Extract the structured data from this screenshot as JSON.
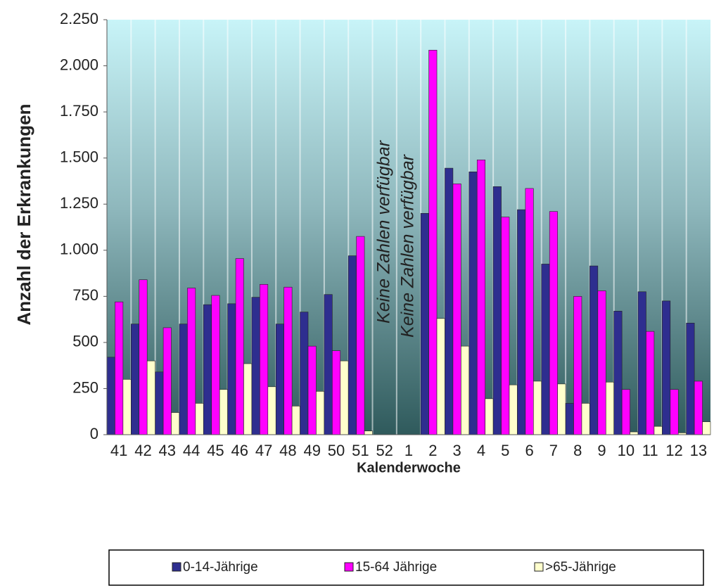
{
  "chart_data": {
    "type": "bar",
    "y_label": "Anzahl  der Erkrankungen",
    "x_label": "Kalenderwoche",
    "categories": [
      "41",
      "42",
      "43",
      "44",
      "45",
      "46",
      "47",
      "48",
      "49",
      "50",
      "51",
      "52",
      "1",
      "2",
      "3",
      "4",
      "5",
      "6",
      "7",
      "8",
      "9",
      "10",
      "11",
      "12",
      "13"
    ],
    "series": [
      {
        "name": "0-14-Jährige",
        "color": "#2e2e8f",
        "values": [
          420,
          600,
          340,
          600,
          705,
          710,
          745,
          600,
          665,
          760,
          970,
          null,
          null,
          1200,
          1445,
          1425,
          1345,
          1220,
          925,
          170,
          915,
          670,
          775,
          725,
          605
        ]
      },
      {
        "name": "15-64 Jährige",
        "color": "#ff00ff",
        "values": [
          720,
          840,
          580,
          795,
          755,
          955,
          815,
          800,
          480,
          455,
          1075,
          null,
          null,
          2085,
          1360,
          1490,
          1180,
          1335,
          1210,
          750,
          780,
          245,
          560,
          245,
          290
        ]
      },
      {
        "name": ">65-Jährige",
        "color": "#ffffcc",
        "values": [
          300,
          400,
          120,
          170,
          245,
          385,
          260,
          155,
          235,
          400,
          20,
          null,
          null,
          630,
          480,
          195,
          270,
          290,
          275,
          170,
          285,
          15,
          45,
          10,
          70
        ]
      }
    ],
    "annotations": [
      "Keine Zahlen verfügbar",
      "Keine Zahlen verfügbar"
    ],
    "ylim": [
      0,
      2250
    ],
    "yticks": [
      0,
      250,
      500,
      750,
      {
        "value": 1000,
        "label": "1.000"
      },
      {
        "value": 1250,
        "label": "1.250"
      },
      {
        "value": 1500,
        "label": "1.500"
      },
      {
        "value": 1750,
        "label": "1.750"
      },
      {
        "value": 2000,
        "label": "2.000"
      },
      {
        "value": 2250,
        "label": "2.250"
      }
    ]
  }
}
